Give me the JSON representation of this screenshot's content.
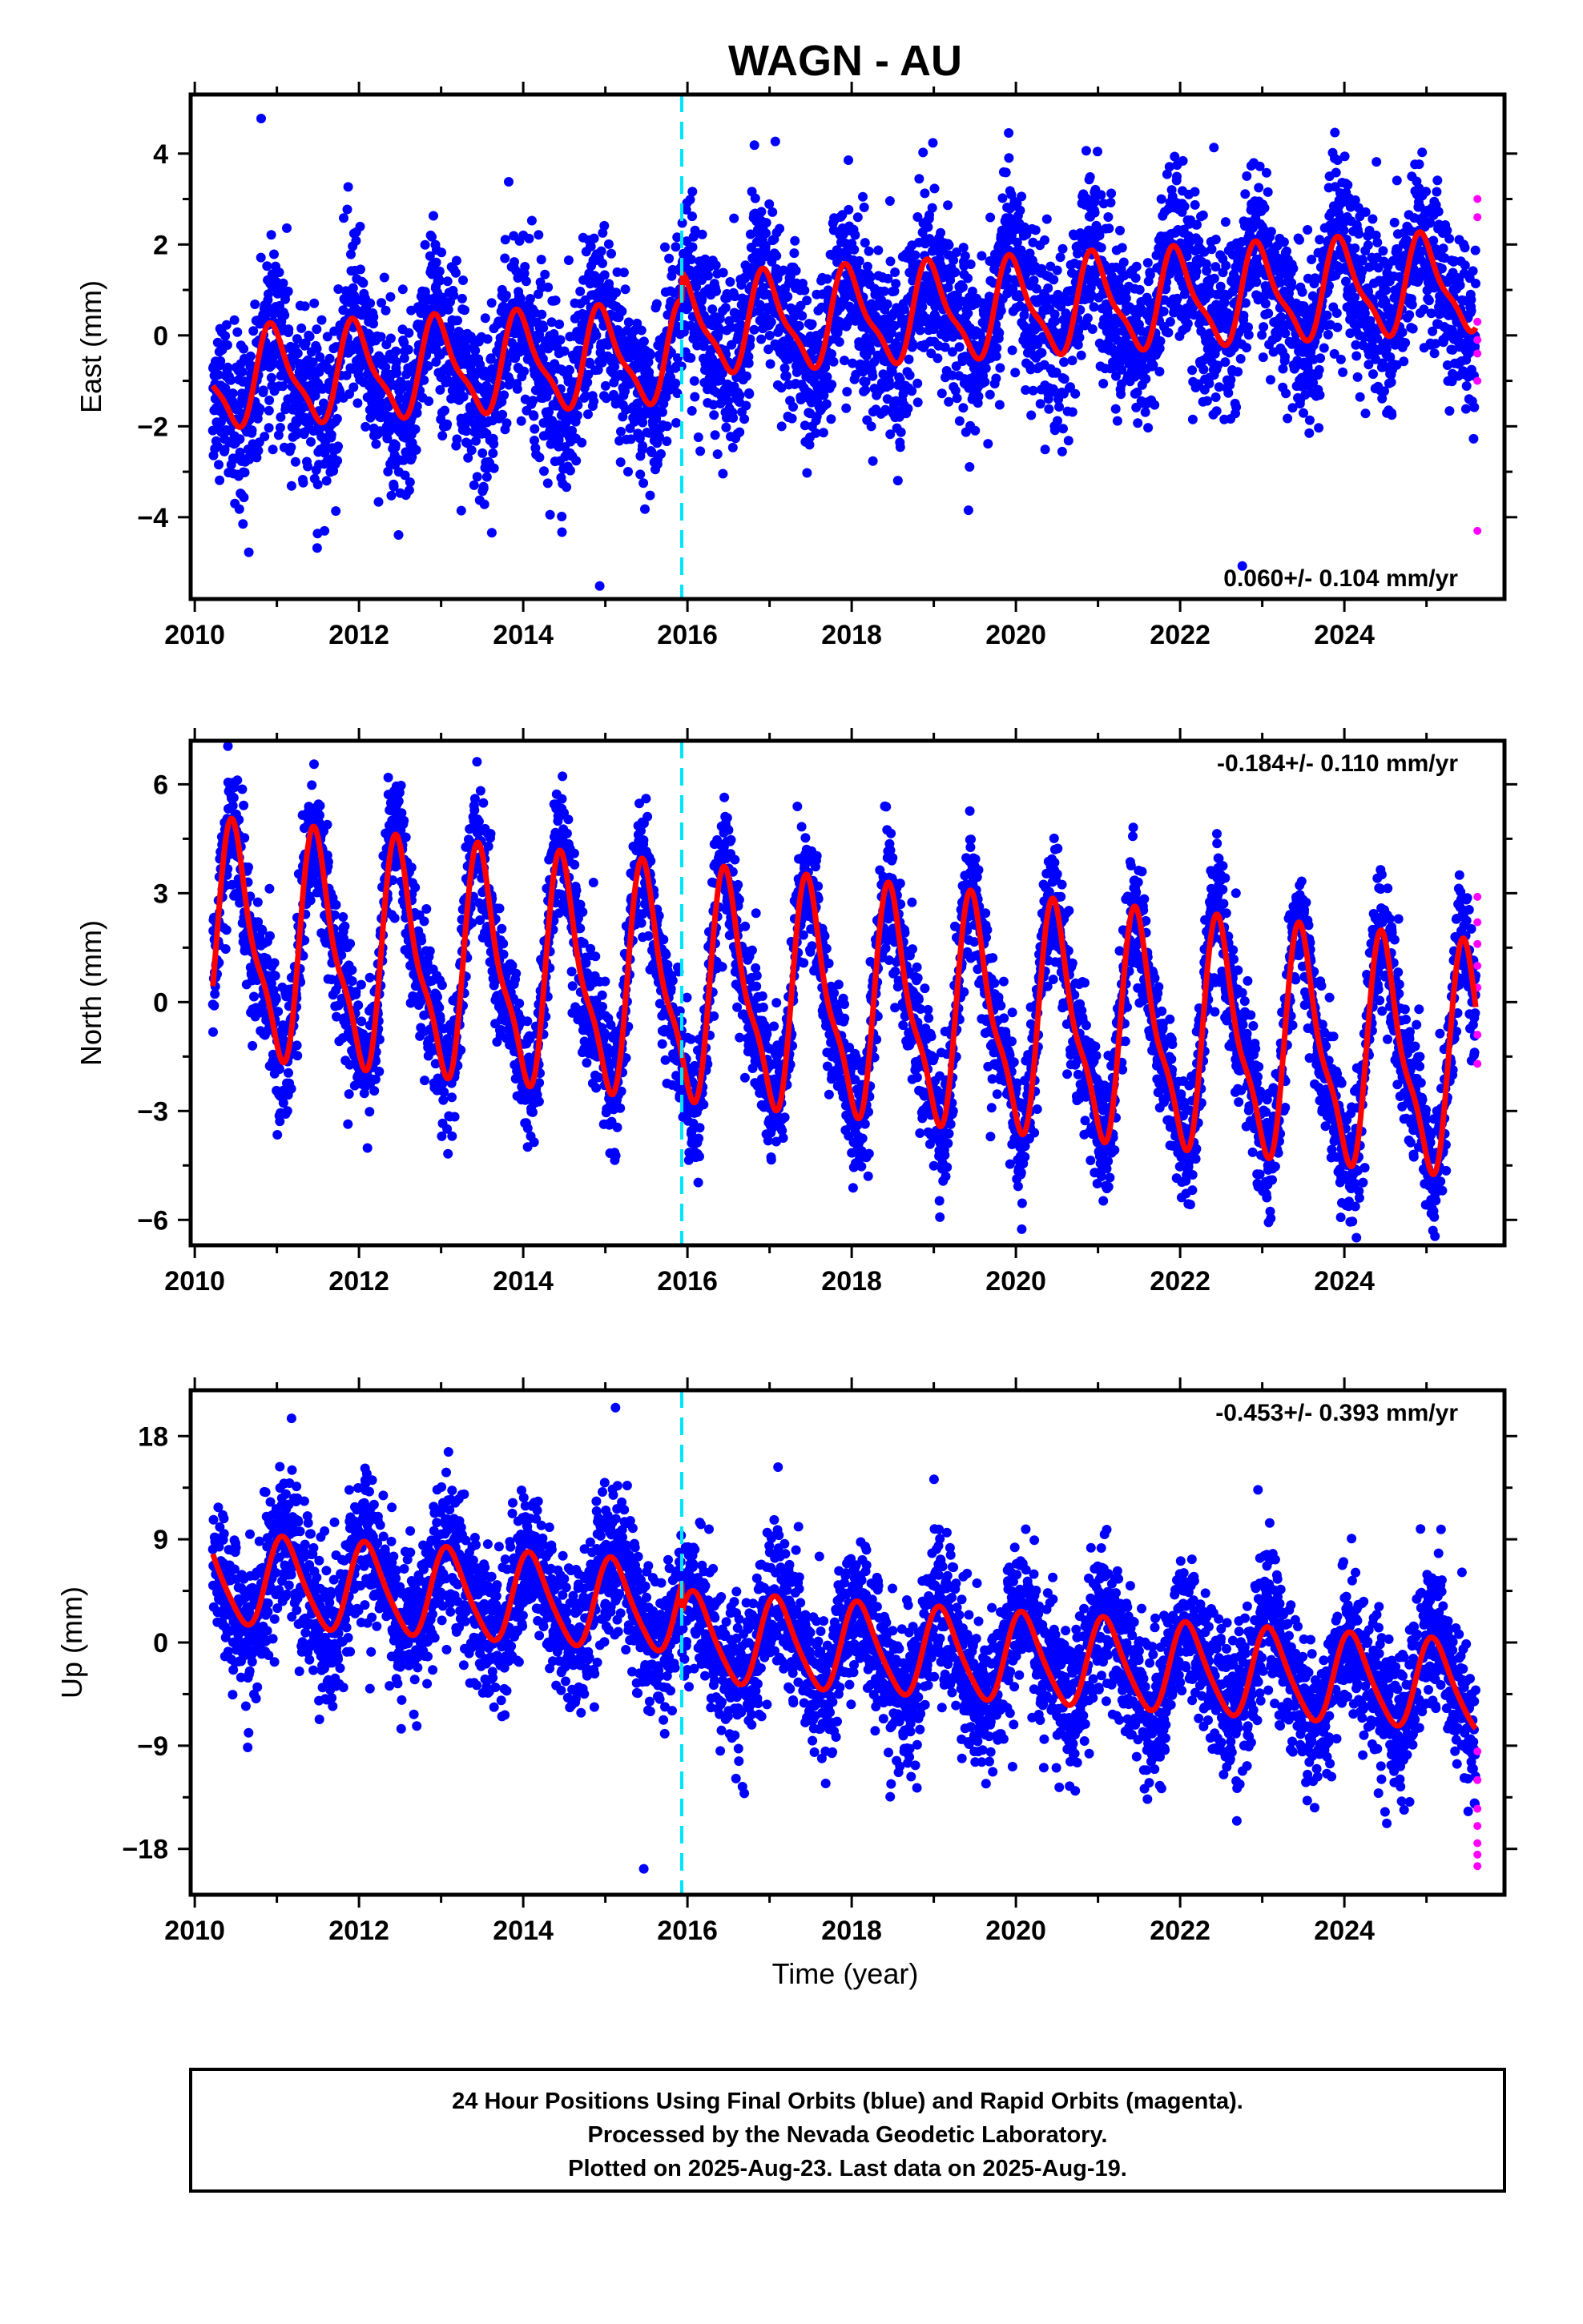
{
  "title": "WAGN - AU",
  "xlabel": "Time (year)",
  "footer": [
    "24 Hour Positions Using Final Orbits (blue) and Rapid Orbits (magenta).",
    "Processed by the Nevada Geodetic Laboratory.",
    "Plotted on 2025-Aug-23. Last data on 2025-Aug-19."
  ],
  "colors": {
    "final": "#0000ff",
    "rapid": "#ff00ff",
    "model": "#ff0000",
    "marker": "#00e5ff"
  },
  "chart_data": [
    {
      "type": "scatter",
      "name": "east",
      "ylabel": "East (mm)",
      "rate_label": "0.060+/- 0.104 mm/yr",
      "rate_position": "bottom-right",
      "xlim": [
        2009.95,
        2025.95
      ],
      "ylim": [
        -5.8,
        5.3
      ],
      "xticks": [
        2010,
        2012,
        2014,
        2016,
        2018,
        2020,
        2022,
        2024
      ],
      "yticks": [
        -4,
        -2,
        0,
        2,
        4
      ],
      "equipment_change": 2015.93,
      "model": {
        "offset_start": -1.0,
        "trend": 0.1,
        "jump_2015_93": 0.6,
        "annual_amp": 1.0,
        "annual_phase_peak": 0.97,
        "semiannual_amp": 0.3
      },
      "scatter_sigma": 0.95,
      "rapid_points": [
        3.0,
        2.6,
        0.3,
        -0.1,
        -0.4,
        -1.0,
        -4.3
      ]
    },
    {
      "type": "scatter",
      "name": "north",
      "ylabel": "North (mm)",
      "rate_label": "-0.184+/- 0.110 mm/yr",
      "rate_position": "top-right",
      "xlim": [
        2009.95,
        2025.95
      ],
      "ylim": [
        -6.7,
        7.2
      ],
      "xticks": [
        2010,
        2012,
        2014,
        2016,
        2018,
        2020,
        2022,
        2024
      ],
      "yticks": [
        -6,
        -3,
        0,
        3,
        6
      ],
      "equipment_change": 2015.93,
      "model": {
        "offset_start": 1.6,
        "trend": -0.22,
        "annual_amp": 2.9,
        "annual_phase_peak": 0.5,
        "semiannual_amp": 0.9
      },
      "scatter_sigma": 0.9,
      "rapid_points": [
        2.9,
        2.2,
        1.6,
        1.0,
        0.4,
        -0.9,
        -1.7
      ]
    },
    {
      "type": "scatter",
      "name": "up",
      "ylabel": "Up (mm)",
      "rate_label": "-0.453+/- 0.393 mm/yr",
      "rate_position": "top-right",
      "xlim": [
        2009.95,
        2025.95
      ],
      "ylim": [
        -22,
        22
      ],
      "xticks": [
        2010,
        2012,
        2014,
        2016,
        2018,
        2020,
        2022,
        2024
      ],
      "yticks": [
        -18,
        -9,
        0,
        9,
        18
      ],
      "equipment_change": 2015.93,
      "model": {
        "offset_start": 5.5,
        "trend": -0.45,
        "jump_2015_93": -2.5,
        "annual_amp": 3.8,
        "annual_phase_peak": 0.1,
        "semiannual_amp": 0.6
      },
      "scatter_sigma": 3.2,
      "rapid_points": [
        -9.5,
        -12.0,
        -14.5,
        -16.0,
        -17.5,
        -18.5,
        -19.5
      ]
    }
  ]
}
